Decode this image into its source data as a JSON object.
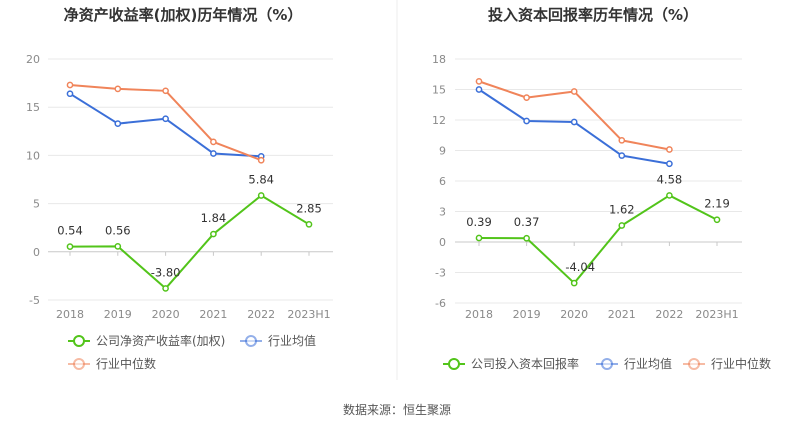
{
  "source_text": "数据来源：恒生聚源",
  "chart_data": [
    {
      "type": "line",
      "title": "净资产收益率(加权)历年情况（%）",
      "categories": [
        "2018",
        "2019",
        "2020",
        "2021",
        "2022",
        "2023H1"
      ],
      "y_ticks": [
        "20",
        "15",
        "10",
        "5",
        "0",
        "-5"
      ],
      "ylim": [
        -5,
        20
      ],
      "series": [
        {
          "name": "公司净资产收益率(加权)",
          "color": "#52c41a",
          "values": [
            0.54,
            0.56,
            -3.8,
            1.84,
            5.84,
            2.85
          ],
          "labels": [
            "0.54",
            "0.56",
            "-3.80",
            "1.84",
            "5.84",
            "2.85"
          ]
        },
        {
          "name": "行业均值",
          "color": "#3b6fd8",
          "values": [
            16.4,
            13.3,
            13.8,
            10.2,
            9.9,
            null
          ]
        },
        {
          "name": "行业中位数",
          "color": "#f0845a",
          "values": [
            17.3,
            16.9,
            16.7,
            11.4,
            9.5,
            null
          ]
        }
      ]
    },
    {
      "type": "line",
      "title": "投入资本回报率历年情况（%）",
      "categories": [
        "2018",
        "2019",
        "2020",
        "2021",
        "2022",
        "2023H1"
      ],
      "y_ticks": [
        "18",
        "15",
        "12",
        "9",
        "6",
        "3",
        "0",
        "-3",
        "-6"
      ],
      "ylim": [
        -6,
        18
      ],
      "series": [
        {
          "name": "公司投入资本回报率",
          "color": "#52c41a",
          "values": [
            0.39,
            0.37,
            -4.04,
            1.62,
            4.58,
            2.19
          ],
          "labels": [
            "0.39",
            "0.37",
            "-4.04",
            "1.62",
            "4.58",
            "2.19"
          ]
        },
        {
          "name": "行业均值",
          "color": "#3b6fd8",
          "values": [
            15.0,
            11.9,
            11.8,
            8.5,
            7.7,
            null
          ]
        },
        {
          "name": "行业中位数",
          "color": "#f0845a",
          "values": [
            15.8,
            14.2,
            14.8,
            10.0,
            9.1,
            null
          ]
        }
      ]
    }
  ]
}
